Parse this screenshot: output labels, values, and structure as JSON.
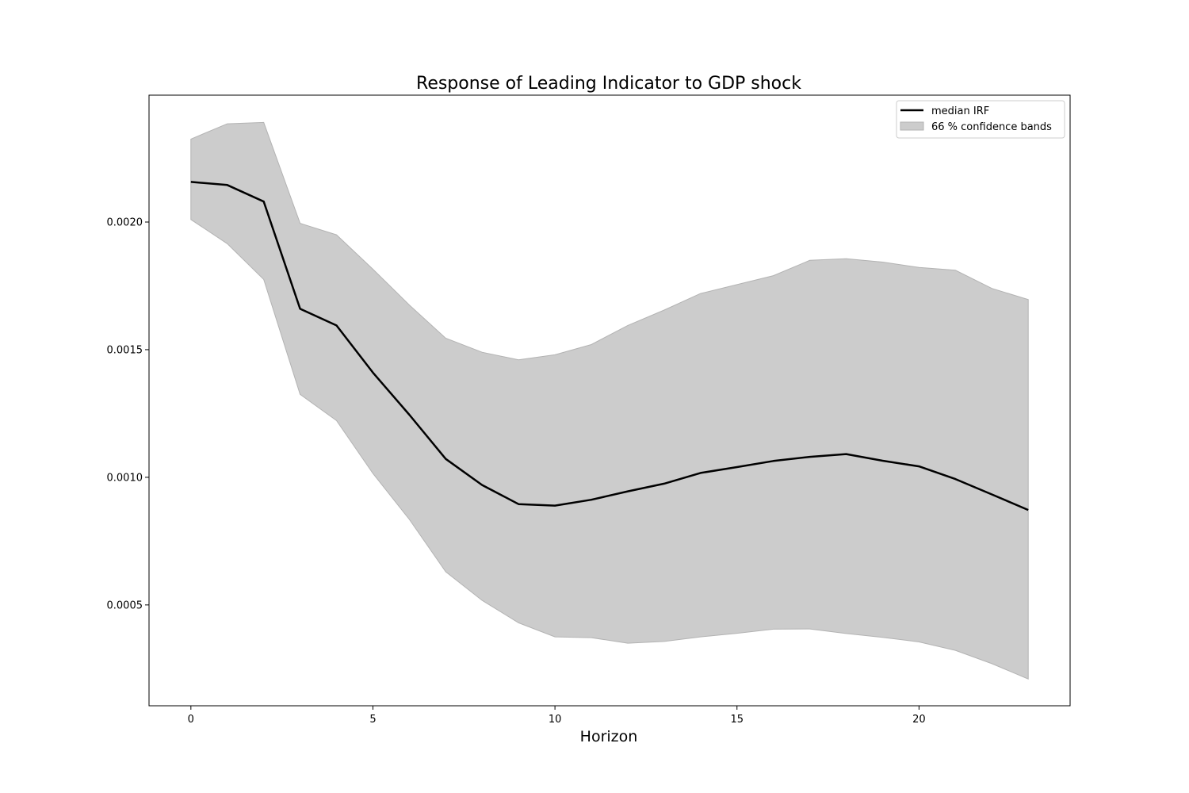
{
  "chart_data": {
    "type": "line",
    "title": "Response of Leading Indicator to GDP shock",
    "xlabel": "Horizon",
    "ylabel": "",
    "xlim": [
      -1.15,
      24.15
    ],
    "ylim": [
      0.000105,
      0.002497
    ],
    "x_ticks": [
      0,
      5,
      10,
      15,
      20
    ],
    "x_tick_labels": [
      "0",
      "5",
      "10",
      "15",
      "20"
    ],
    "y_ticks": [
      0.0005,
      0.001,
      0.0015,
      0.002
    ],
    "y_tick_labels": [
      "0.0005",
      "0.0010",
      "0.0015",
      "0.0020"
    ],
    "grid": false,
    "legend_position": "top-right",
    "x": [
      0,
      1,
      2,
      3,
      4,
      5,
      6,
      7,
      8,
      9,
      10,
      11,
      12,
      13,
      14,
      15,
      16,
      17,
      18,
      19,
      20,
      21,
      22,
      23
    ],
    "series": [
      {
        "name": "median IRF",
        "color": "#000000",
        "values": [
          0.002157,
          0.002145,
          0.00208,
          0.00166,
          0.001595,
          0.00141,
          0.001245,
          0.001072,
          0.00097,
          0.000895,
          0.000889,
          0.000912,
          0.000945,
          0.000975,
          0.001017,
          0.00104,
          0.001064,
          0.00108,
          0.001091,
          0.001065,
          0.001043,
          0.000993,
          0.000933,
          0.000872
        ]
      }
    ],
    "band": {
      "name": "66 % confidence bands",
      "color": "#cccccc",
      "edge_color": "#b3b3b3",
      "upper": [
        0.002325,
        0.002385,
        0.00239,
        0.001995,
        0.00195,
        0.001815,
        0.001675,
        0.001545,
        0.00149,
        0.00146,
        0.00148,
        0.00152,
        0.001595,
        0.001655,
        0.00172,
        0.001755,
        0.00179,
        0.00185,
        0.001856,
        0.001843,
        0.001822,
        0.001811,
        0.00174,
        0.001696
      ],
      "lower": [
        0.00201,
        0.001915,
        0.001775,
        0.001325,
        0.001222,
        0.001015,
        0.000835,
        0.00063,
        0.000518,
        0.00043,
        0.000375,
        0.000372,
        0.00035,
        0.000357,
        0.000375,
        0.000389,
        0.000405,
        0.000406,
        0.000388,
        0.000373,
        0.000355,
        0.000322,
        0.00027,
        0.00021
      ]
    }
  }
}
